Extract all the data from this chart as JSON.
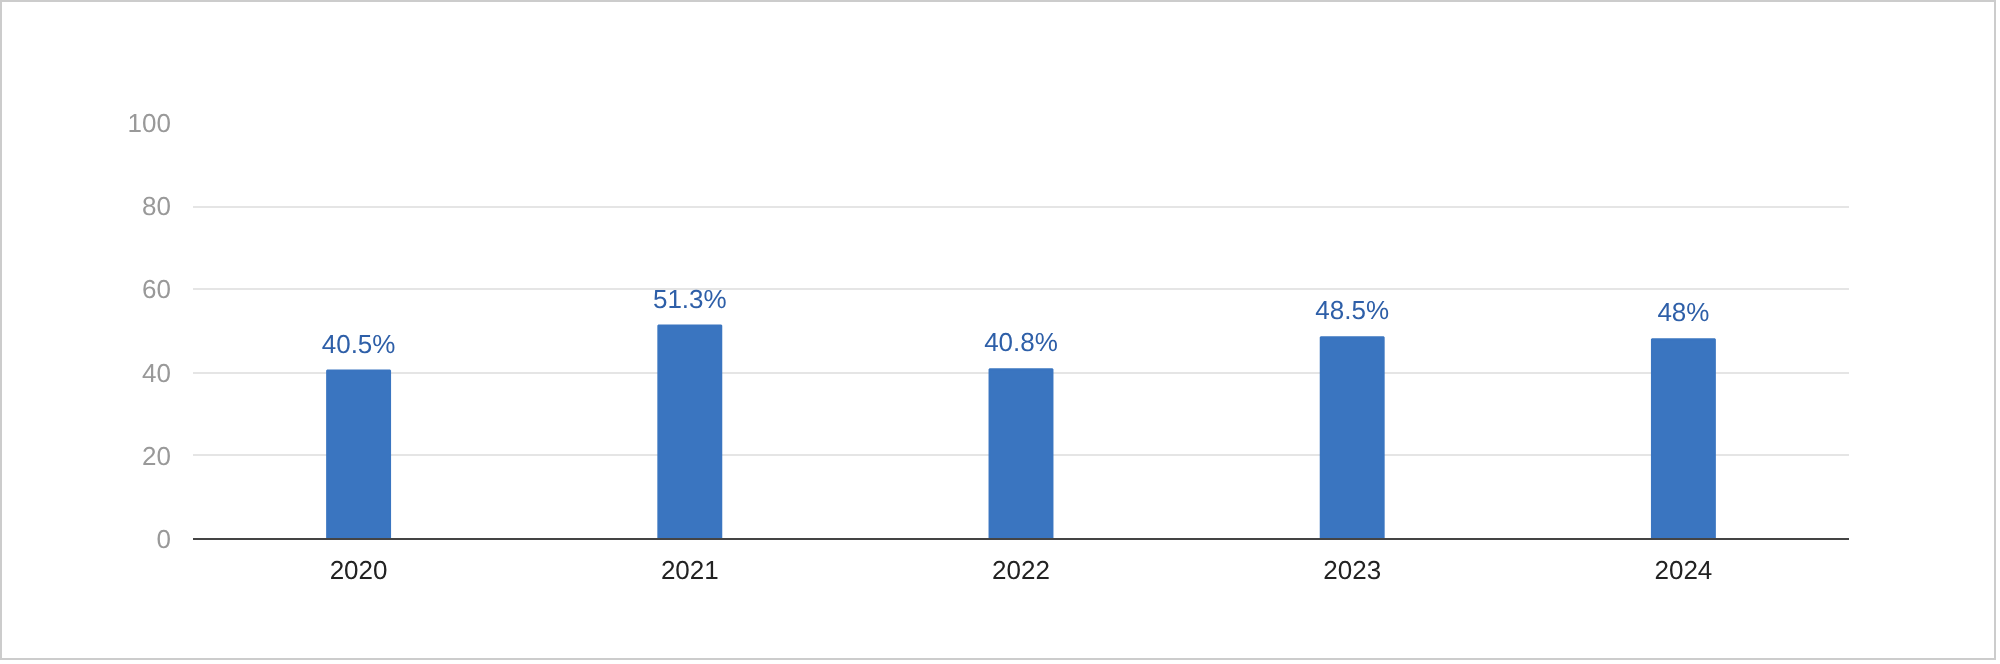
{
  "chart_data": {
    "type": "bar",
    "categories": [
      "2020",
      "2021",
      "2022",
      "2023",
      "2024"
    ],
    "values": [
      40.5,
      51.3,
      40.8,
      48.5,
      48
    ],
    "value_labels": [
      "40.5%",
      "51.3%",
      "40.8%",
      "48.5%",
      "48%"
    ],
    "color": "#3a75c0",
    "ylim": [
      0,
      100
    ],
    "yticks": [
      0,
      20,
      40,
      60,
      80,
      100
    ],
    "grid": "y"
  }
}
